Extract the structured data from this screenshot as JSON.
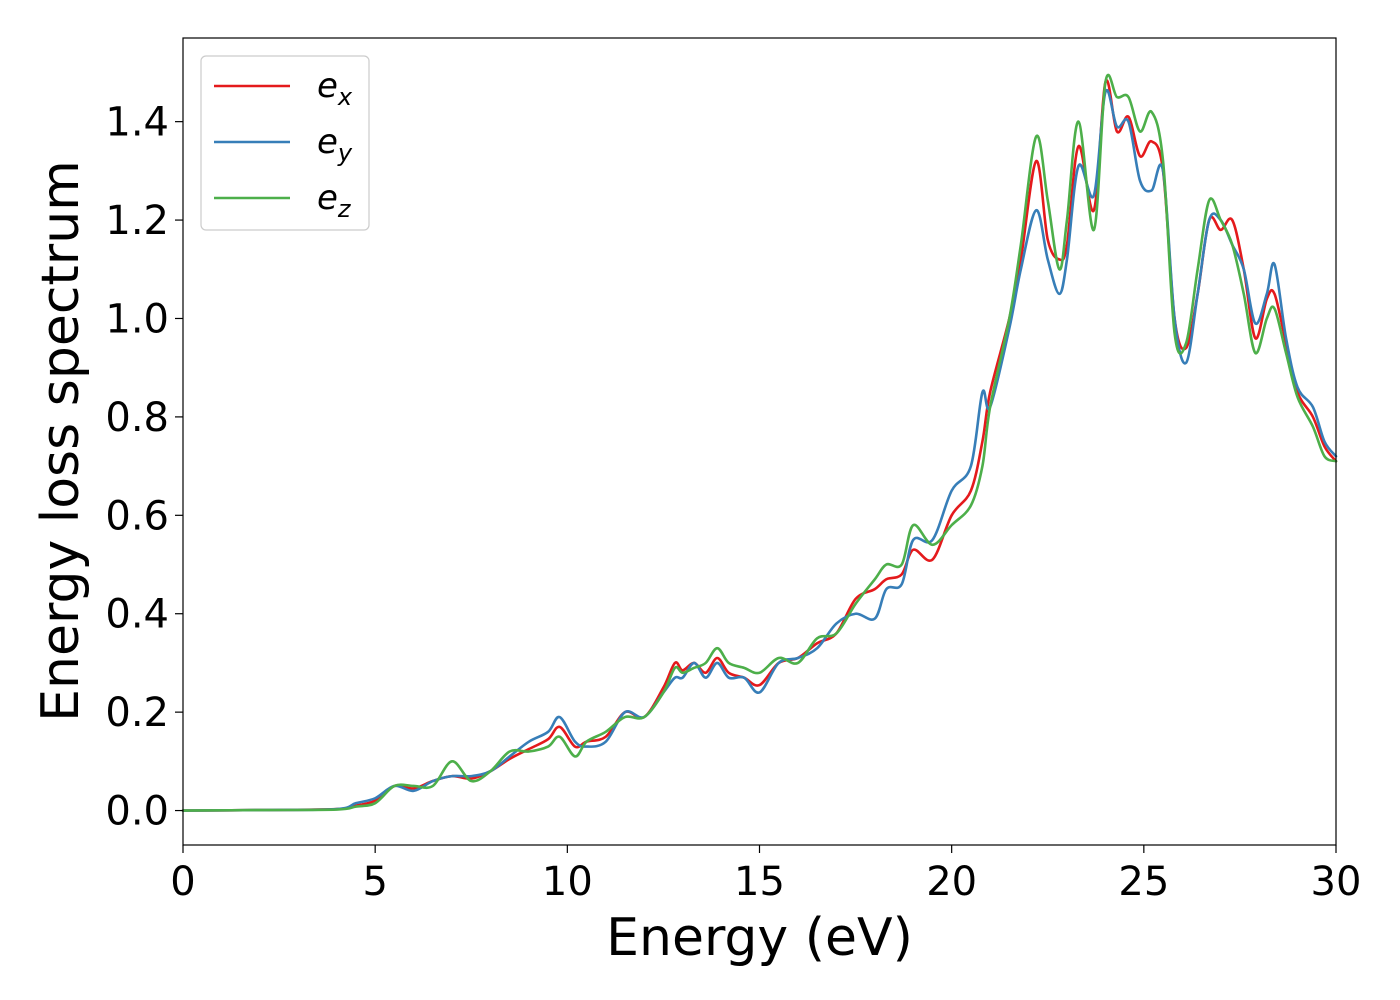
{
  "chart_data": {
    "type": "line",
    "title": "",
    "xlabel": "Energy (eV)",
    "ylabel": "Energy loss spectrum",
    "xlim": [
      0,
      30
    ],
    "ylim": [
      -0.07,
      1.57
    ],
    "xticks": [
      0,
      5,
      10,
      15,
      20,
      25,
      30
    ],
    "xtick_labels": [
      "0",
      "5",
      "10",
      "15",
      "20",
      "25",
      "30"
    ],
    "yticks": [
      0.0,
      0.2,
      0.4,
      0.6,
      0.8,
      1.0,
      1.2,
      1.4
    ],
    "ytick_labels": [
      "0.0",
      "0.2",
      "0.4",
      "0.6",
      "0.8",
      "1.0",
      "1.2",
      "1.4"
    ],
    "grid": false,
    "legend_position": "top-left",
    "series": [
      {
        "name": "e_x",
        "legend_main": "e",
        "legend_sub": "x",
        "color": "#e41a1c",
        "points": [
          [
            0,
            0
          ],
          [
            2,
            0.001
          ],
          [
            4,
            0.003
          ],
          [
            4.5,
            0.01
          ],
          [
            5,
            0.02
          ],
          [
            5.5,
            0.05
          ],
          [
            6,
            0.045
          ],
          [
            6.5,
            0.06
          ],
          [
            7,
            0.07
          ],
          [
            7.5,
            0.065
          ],
          [
            8,
            0.08
          ],
          [
            8.5,
            0.105
          ],
          [
            9,
            0.125
          ],
          [
            9.5,
            0.145
          ],
          [
            9.8,
            0.17
          ],
          [
            10.2,
            0.13
          ],
          [
            10.5,
            0.14
          ],
          [
            11,
            0.15
          ],
          [
            11.5,
            0.2
          ],
          [
            12,
            0.19
          ],
          [
            12.5,
            0.25
          ],
          [
            12.8,
            0.3
          ],
          [
            13,
            0.285
          ],
          [
            13.3,
            0.3
          ],
          [
            13.6,
            0.28
          ],
          [
            13.9,
            0.31
          ],
          [
            14.2,
            0.28
          ],
          [
            14.6,
            0.27
          ],
          [
            15,
            0.255
          ],
          [
            15.5,
            0.3
          ],
          [
            16,
            0.31
          ],
          [
            16.5,
            0.34
          ],
          [
            17,
            0.36
          ],
          [
            17.5,
            0.43
          ],
          [
            18,
            0.45
          ],
          [
            18.3,
            0.47
          ],
          [
            18.7,
            0.48
          ],
          [
            19,
            0.53
          ],
          [
            19.5,
            0.51
          ],
          [
            20,
            0.6
          ],
          [
            20.5,
            0.65
          ],
          [
            20.8,
            0.75
          ],
          [
            21,
            0.85
          ],
          [
            21.5,
            1.0
          ],
          [
            21.8,
            1.12
          ],
          [
            22.2,
            1.32
          ],
          [
            22.5,
            1.16
          ],
          [
            22.8,
            1.12
          ],
          [
            23,
            1.15
          ],
          [
            23.3,
            1.35
          ],
          [
            23.7,
            1.22
          ],
          [
            24,
            1.48
          ],
          [
            24.3,
            1.38
          ],
          [
            24.6,
            1.41
          ],
          [
            24.9,
            1.33
          ],
          [
            25.2,
            1.36
          ],
          [
            25.5,
            1.3
          ],
          [
            25.8,
            1.0
          ],
          [
            26.1,
            0.94
          ],
          [
            26.4,
            1.05
          ],
          [
            26.7,
            1.2
          ],
          [
            27,
            1.18
          ],
          [
            27.3,
            1.2
          ],
          [
            27.6,
            1.1
          ],
          [
            27.9,
            0.96
          ],
          [
            28.2,
            1.04
          ],
          [
            28.4,
            1.05
          ],
          [
            28.7,
            0.95
          ],
          [
            29,
            0.85
          ],
          [
            29.4,
            0.8
          ],
          [
            29.7,
            0.74
          ],
          [
            30,
            0.71
          ]
        ]
      },
      {
        "name": "e_y",
        "legend_main": "e",
        "legend_sub": "y",
        "color": "#377eb8",
        "points": [
          [
            0,
            0
          ],
          [
            2,
            0.001
          ],
          [
            4,
            0.003
          ],
          [
            4.5,
            0.015
          ],
          [
            5,
            0.025
          ],
          [
            5.5,
            0.05
          ],
          [
            6,
            0.04
          ],
          [
            6.5,
            0.06
          ],
          [
            7,
            0.07
          ],
          [
            7.5,
            0.07
          ],
          [
            8,
            0.08
          ],
          [
            8.5,
            0.11
          ],
          [
            9,
            0.14
          ],
          [
            9.5,
            0.16
          ],
          [
            9.8,
            0.19
          ],
          [
            10.2,
            0.14
          ],
          [
            10.5,
            0.13
          ],
          [
            11,
            0.14
          ],
          [
            11.5,
            0.2
          ],
          [
            12,
            0.19
          ],
          [
            12.5,
            0.24
          ],
          [
            12.8,
            0.27
          ],
          [
            13,
            0.27
          ],
          [
            13.3,
            0.3
          ],
          [
            13.6,
            0.27
          ],
          [
            13.9,
            0.3
          ],
          [
            14.2,
            0.27
          ],
          [
            14.6,
            0.27
          ],
          [
            15,
            0.24
          ],
          [
            15.5,
            0.3
          ],
          [
            16,
            0.31
          ],
          [
            16.5,
            0.33
          ],
          [
            17,
            0.38
          ],
          [
            17.5,
            0.4
          ],
          [
            18,
            0.39
          ],
          [
            18.3,
            0.45
          ],
          [
            18.7,
            0.46
          ],
          [
            19,
            0.55
          ],
          [
            19.5,
            0.55
          ],
          [
            20,
            0.65
          ],
          [
            20.5,
            0.7
          ],
          [
            20.8,
            0.85
          ],
          [
            21,
            0.82
          ],
          [
            21.5,
            0.98
          ],
          [
            21.8,
            1.1
          ],
          [
            22.2,
            1.22
          ],
          [
            22.5,
            1.12
          ],
          [
            22.8,
            1.05
          ],
          [
            23,
            1.12
          ],
          [
            23.3,
            1.31
          ],
          [
            23.7,
            1.25
          ],
          [
            24,
            1.46
          ],
          [
            24.3,
            1.39
          ],
          [
            24.6,
            1.4
          ],
          [
            24.9,
            1.28
          ],
          [
            25.2,
            1.26
          ],
          [
            25.5,
            1.3
          ],
          [
            25.8,
            1.0
          ],
          [
            26.1,
            0.91
          ],
          [
            26.4,
            1.05
          ],
          [
            26.7,
            1.2
          ],
          [
            27,
            1.2
          ],
          [
            27.3,
            1.15
          ],
          [
            27.6,
            1.1
          ],
          [
            27.9,
            0.99
          ],
          [
            28.2,
            1.05
          ],
          [
            28.4,
            1.11
          ],
          [
            28.7,
            0.96
          ],
          [
            29,
            0.86
          ],
          [
            29.4,
            0.82
          ],
          [
            29.7,
            0.75
          ],
          [
            30,
            0.72
          ]
        ]
      },
      {
        "name": "e_z",
        "legend_main": "e",
        "legend_sub": "z",
        "color": "#4daf4a",
        "points": [
          [
            0,
            0
          ],
          [
            2,
            0.001
          ],
          [
            4,
            0.002
          ],
          [
            4.5,
            0.008
          ],
          [
            5,
            0.015
          ],
          [
            5.5,
            0.05
          ],
          [
            6,
            0.05
          ],
          [
            6.5,
            0.05
          ],
          [
            7,
            0.1
          ],
          [
            7.5,
            0.06
          ],
          [
            8,
            0.08
          ],
          [
            8.5,
            0.12
          ],
          [
            9,
            0.12
          ],
          [
            9.5,
            0.13
          ],
          [
            9.8,
            0.15
          ],
          [
            10.2,
            0.11
          ],
          [
            10.5,
            0.14
          ],
          [
            11,
            0.16
          ],
          [
            11.5,
            0.19
          ],
          [
            12,
            0.19
          ],
          [
            12.5,
            0.24
          ],
          [
            12.8,
            0.29
          ],
          [
            13,
            0.28
          ],
          [
            13.3,
            0.29
          ],
          [
            13.6,
            0.3
          ],
          [
            13.9,
            0.33
          ],
          [
            14.2,
            0.3
          ],
          [
            14.6,
            0.29
          ],
          [
            15,
            0.28
          ],
          [
            15.5,
            0.31
          ],
          [
            16,
            0.3
          ],
          [
            16.5,
            0.35
          ],
          [
            17,
            0.36
          ],
          [
            17.5,
            0.42
          ],
          [
            18,
            0.47
          ],
          [
            18.3,
            0.5
          ],
          [
            18.7,
            0.5
          ],
          [
            19,
            0.58
          ],
          [
            19.5,
            0.54
          ],
          [
            20,
            0.58
          ],
          [
            20.5,
            0.62
          ],
          [
            20.8,
            0.7
          ],
          [
            21,
            0.82
          ],
          [
            21.5,
            1.0
          ],
          [
            21.8,
            1.15
          ],
          [
            22.2,
            1.37
          ],
          [
            22.5,
            1.24
          ],
          [
            22.8,
            1.1
          ],
          [
            23,
            1.2
          ],
          [
            23.3,
            1.4
          ],
          [
            23.7,
            1.18
          ],
          [
            24,
            1.48
          ],
          [
            24.3,
            1.45
          ],
          [
            24.6,
            1.45
          ],
          [
            24.9,
            1.38
          ],
          [
            25.2,
            1.42
          ],
          [
            25.5,
            1.32
          ],
          [
            25.8,
            0.97
          ],
          [
            26.1,
            0.95
          ],
          [
            26.4,
            1.1
          ],
          [
            26.7,
            1.24
          ],
          [
            27,
            1.2
          ],
          [
            27.3,
            1.15
          ],
          [
            27.6,
            1.05
          ],
          [
            27.9,
            0.93
          ],
          [
            28.2,
            1.0
          ],
          [
            28.4,
            1.02
          ],
          [
            28.7,
            0.93
          ],
          [
            29,
            0.84
          ],
          [
            29.4,
            0.78
          ],
          [
            29.7,
            0.72
          ],
          [
            30,
            0.71
          ]
        ]
      }
    ]
  }
}
